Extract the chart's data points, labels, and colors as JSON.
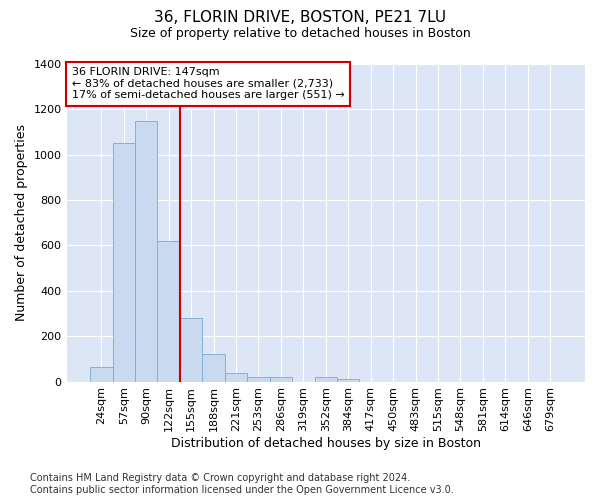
{
  "title_line1": "36, FLORIN DRIVE, BOSTON, PE21 7LU",
  "title_line2": "Size of property relative to detached houses in Boston",
  "xlabel": "Distribution of detached houses by size in Boston",
  "ylabel": "Number of detached properties",
  "bar_values": [
    65,
    1050,
    1150,
    620,
    280,
    120,
    40,
    20,
    20,
    0,
    20,
    10,
    0,
    0,
    0,
    0,
    0,
    0,
    0,
    0,
    0
  ],
  "bin_labels": [
    "24sqm",
    "57sqm",
    "90sqm",
    "122sqm",
    "155sqm",
    "188sqm",
    "221sqm",
    "253sqm",
    "286sqm",
    "319sqm",
    "352sqm",
    "384sqm",
    "417sqm",
    "450sqm",
    "483sqm",
    "515sqm",
    "548sqm",
    "581sqm",
    "614sqm",
    "646sqm",
    "679sqm"
  ],
  "bar_color": "#c8d9f0",
  "bar_edge_color": "#7aaad0",
  "vline_color": "#cc0000",
  "vline_x_index": 4,
  "annotation_text": "36 FLORIN DRIVE: 147sqm\n← 83% of detached houses are smaller (2,733)\n17% of semi-detached houses are larger (551) →",
  "annotation_box_facecolor": "white",
  "annotation_box_edgecolor": "#cc0000",
  "ylim": [
    0,
    1400
  ],
  "yticks": [
    0,
    200,
    400,
    600,
    800,
    1000,
    1200,
    1400
  ],
  "plot_bg_color": "#dce6f5",
  "footer_text": "Contains HM Land Registry data © Crown copyright and database right 2024.\nContains public sector information licensed under the Open Government Licence v3.0.",
  "title_fontsize": 11,
  "subtitle_fontsize": 9,
  "annotation_fontsize": 8,
  "footer_fontsize": 7,
  "axis_label_fontsize": 9,
  "tick_fontsize": 8
}
